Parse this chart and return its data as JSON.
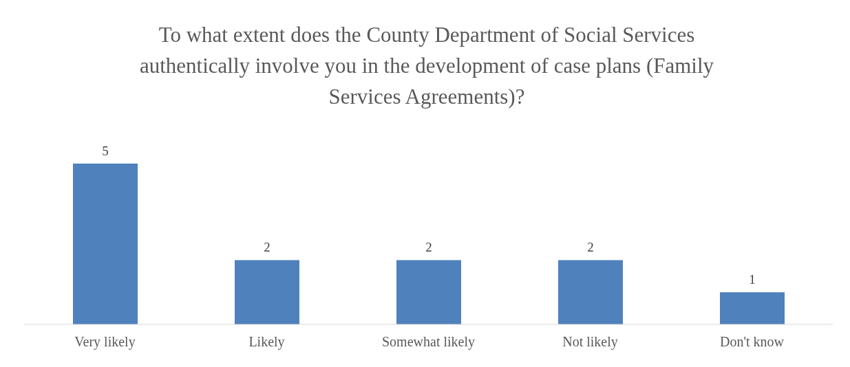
{
  "chart_data": {
    "type": "bar",
    "title": "To what extent does the County Department of Social Services authentically involve you in the development of case plans (Family Services Agreements)?",
    "categories": [
      "Very likely",
      "Likely",
      "Somewhat likely",
      "Not likely",
      "Don't know"
    ],
    "values": [
      5,
      2,
      2,
      2,
      1
    ],
    "color": "#4f81bd",
    "data_labels": true,
    "grid": false,
    "legend": false
  }
}
